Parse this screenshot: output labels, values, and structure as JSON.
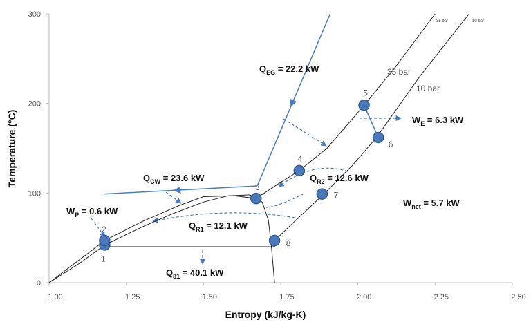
{
  "chart_data": {
    "type": "line",
    "x_label": "Entropy (kJ/kg-K)",
    "y_label": "Temperature (°C)",
    "xlim": [
      1.0,
      2.5
    ],
    "ylim": [
      0,
      300
    ],
    "xticks": [
      {
        "value": 1.0,
        "label": "1.00"
      },
      {
        "value": 1.25,
        "label": "1.25"
      },
      {
        "value": 1.5,
        "label": "1.50"
      },
      {
        "value": 1.75,
        "label": "1.75"
      },
      {
        "value": 2.0,
        "label": "2.00"
      },
      {
        "value": 2.25,
        "label": "2.25"
      },
      {
        "value": 2.5,
        "label": "2.50"
      }
    ],
    "yticks": [
      0,
      100,
      200,
      300
    ],
    "series": [
      {
        "color": "#222222",
        "x": [
          1.0,
          1.1,
          1.18,
          1.3,
          1.4,
          1.5,
          1.58,
          1.65,
          1.69,
          1.71,
          1.72,
          1.73
        ],
        "values": [
          0,
          22,
          42,
          62,
          77,
          90,
          97,
          98,
          90,
          70,
          40,
          0
        ]
      },
      {
        "name": "35 bar",
        "color": "#222222",
        "x": [
          1.0,
          1.18,
          1.3,
          1.42,
          1.5,
          1.6,
          1.67,
          1.75,
          1.81,
          1.9,
          2.02,
          2.12,
          2.25
        ],
        "values": [
          0,
          47,
          68,
          86,
          96,
          97,
          94,
          112,
          125,
          150,
          198,
          240,
          300
        ]
      },
      {
        "name": "10 bar",
        "color": "#222222",
        "x": [
          1.73,
          1.8,
          1.89,
          1.98,
          2.06,
          2.2,
          2.36
        ],
        "values": [
          47,
          70,
          99,
          130,
          162,
          230,
          300
        ]
      },
      {
        "color": "#4a7cc0",
        "x": [
          1.91,
          1.674
        ],
        "values": [
          300,
          108
        ]
      },
      {
        "color": "#4a7cc0",
        "x": [
          1.674,
          1.18
        ],
        "values": [
          108,
          99
        ]
      }
    ],
    "points": {
      "color": "#4a78b8",
      "labels": [
        "1",
        "2",
        "3",
        "4",
        "5",
        "6",
        "7",
        "8"
      ],
      "x": [
        1.18,
        1.18,
        1.67,
        1.81,
        2.02,
        2.066,
        1.884,
        1.73
      ],
      "values": [
        42,
        47,
        94,
        125,
        198,
        162,
        99,
        47
      ]
    },
    "annotations": [
      {
        "main": "Q",
        "sub": "EG",
        "rest": " = 22.2 kW"
      },
      {
        "main": "W",
        "sub": "E",
        "rest": " = 6.3 kW"
      },
      {
        "main": "Q",
        "sub": "CW",
        "rest": " = 23.6 kW"
      },
      {
        "main": "Q",
        "sub": "R2",
        "rest": " = 12.6 kW"
      },
      {
        "main": "W",
        "sub": "net",
        "rest": " = 5.7 kW"
      },
      {
        "main": "W",
        "sub": "P",
        "rest": " = 0.6 kW"
      },
      {
        "main": "Q",
        "sub": "R1",
        "rest": " = 12.1 kW"
      },
      {
        "main": "Q",
        "sub": "81",
        "rest": " = 40.1 kW"
      }
    ]
  }
}
